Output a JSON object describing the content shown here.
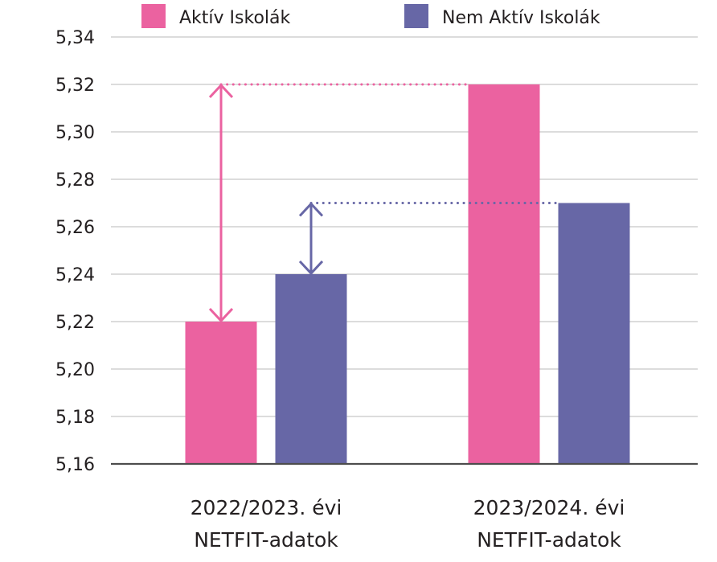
{
  "chart_data": {
    "type": "bar",
    "categories": [
      [
        "2022/2023. évi",
        "NETFIT-adatok"
      ],
      [
        "2023/2024. évi",
        "NETFIT-adatok"
      ]
    ],
    "series": [
      {
        "name": "Aktív Iskolák",
        "color": "#eb62a0",
        "values": [
          5.22,
          5.32
        ]
      },
      {
        "name": "Nem Aktív Iskolák",
        "color": "#6767a6",
        "values": [
          5.24,
          5.27
        ]
      }
    ],
    "yticks": [
      "5,16",
      "5,18",
      "5,20",
      "5,22",
      "5,24",
      "5,26",
      "5,28",
      "5,30",
      "5,32",
      "5,34"
    ],
    "ylim": [
      5.16,
      5.34
    ],
    "grid": true,
    "legend_position": "top",
    "annotations": [
      {
        "type": "change-arrow",
        "series": "Aktív Iskolák",
        "from": 5.22,
        "to": 5.32
      },
      {
        "type": "change-arrow",
        "series": "Nem Aktív Iskolák",
        "from": 5.24,
        "to": 5.27
      }
    ],
    "gridline_color": "#c8c8c8",
    "axis_color": "#4d4d4d",
    "text_color": "#231f20"
  }
}
